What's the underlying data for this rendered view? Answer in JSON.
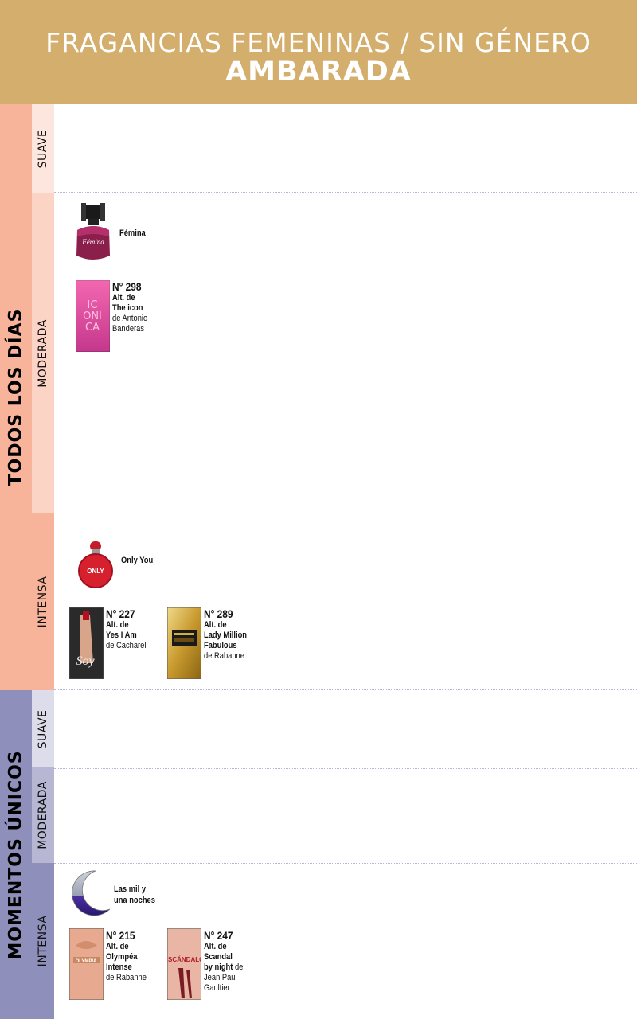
{
  "header": {
    "line1": "FRAGANCIAS FEMENINAS / SIN GÉNERO",
    "line2": "AMBARADA"
  },
  "sections": {
    "todos": {
      "label": "TODOS LOS DÍAS",
      "color": "#f8b39b"
    },
    "momentos": {
      "label": "MOMENTOS ÚNICOS",
      "color": "#8e8fba"
    }
  },
  "intensities": {
    "suave": "SUAVE",
    "moderada": "MODERADA",
    "intensa": "INTENSA"
  },
  "products": {
    "femina": {
      "name": "Fémina"
    },
    "iconica": {
      "number": "N° 298",
      "alt": "Alt. de",
      "ref": "The icon",
      "brand": "de Antonio",
      "brand2": "Banderas",
      "box_text": "ICONICA"
    },
    "onlyyou": {
      "name": "Only You",
      "bottle_text": "ONLY"
    },
    "soy": {
      "number": "N° 227",
      "alt": "Alt. de",
      "ref": "Yes I Am",
      "brand": "de Cacharel",
      "box_text": "Soy"
    },
    "n289": {
      "number": "N° 289",
      "alt": "Alt. de",
      "ref": "Lady Million",
      "ref2": "Fabulous",
      "brand": "de Rabanne"
    },
    "milnoches": {
      "name": "Las mil y",
      "name2": "una noches"
    },
    "n215": {
      "number": "N° 215",
      "alt": "Alt. de",
      "ref": "Olympéa",
      "ref2": "Intense",
      "brand": "de Rabanne",
      "box_text": "OLYMPIA"
    },
    "n247": {
      "number": "N° 247",
      "alt": "Alt. de",
      "ref": "Scandal",
      "ref2": "by night",
      "brand_inline": "de",
      "brand": "Jean Paul",
      "brand2": "Gaultier",
      "box_text": "ESCÁNDALO"
    }
  }
}
